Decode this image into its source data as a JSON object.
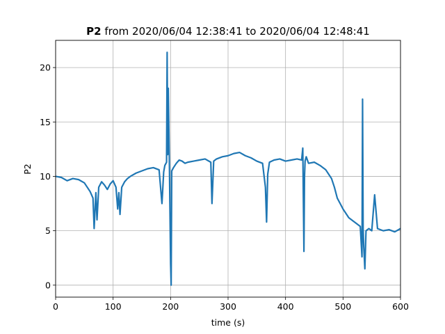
{
  "chart_data": {
    "type": "line",
    "title_bold": "P2",
    "title_rest": " from 2020/06/04 12:38:41 to 2020/06/04 12:48:41",
    "xlabel": "time (s)",
    "ylabel": "P2",
    "xlim": [
      0,
      600
    ],
    "ylim": [
      -1.1,
      22.5
    ],
    "xticks": [
      0,
      100,
      200,
      300,
      400,
      500,
      600
    ],
    "yticks": [
      0,
      5,
      10,
      15,
      20
    ],
    "grid": true,
    "series_color": "#1f77b4",
    "series": [
      {
        "x": [
          0,
          10,
          20,
          30,
          40,
          50,
          55,
          60,
          65,
          67,
          70,
          72,
          75,
          80,
          85,
          90,
          95,
          100,
          105,
          108,
          110,
          112,
          115,
          120,
          125,
          130,
          140,
          150,
          160,
          170,
          180,
          185,
          188,
          190,
          193,
          194,
          195,
          196,
          198,
          200,
          201,
          202,
          205,
          210,
          215,
          220,
          225,
          230,
          240,
          250,
          260,
          270,
          272,
          275,
          280,
          290,
          300,
          310,
          320,
          330,
          340,
          350,
          360,
          365,
          367,
          369,
          372,
          380,
          390,
          400,
          410,
          420,
          428,
          430,
          432,
          433,
          434,
          436,
          440,
          450,
          460,
          470,
          480,
          485,
          490,
          495,
          500,
          505,
          510,
          520,
          530,
          533,
          534,
          535,
          536,
          538,
          540,
          545,
          550,
          555,
          560,
          570,
          580,
          590,
          600
        ],
        "values": [
          10.0,
          9.9,
          9.6,
          9.8,
          9.7,
          9.4,
          9.0,
          8.6,
          8.0,
          5.2,
          8.5,
          6.0,
          9.0,
          9.5,
          9.2,
          8.8,
          9.3,
          9.6,
          9.0,
          7.0,
          8.5,
          6.5,
          9.0,
          9.5,
          9.8,
          10.0,
          10.3,
          10.5,
          10.7,
          10.8,
          10.6,
          7.5,
          10.4,
          11.0,
          11.3,
          21.4,
          12.0,
          18.1,
          10.9,
          2.0,
          0.0,
          10.5,
          10.8,
          11.2,
          11.5,
          11.4,
          11.2,
          11.3,
          11.4,
          11.5,
          11.6,
          11.3,
          7.5,
          11.4,
          11.6,
          11.8,
          11.9,
          12.1,
          12.2,
          11.9,
          11.7,
          11.4,
          11.2,
          9.0,
          5.8,
          10.2,
          11.3,
          11.5,
          11.6,
          11.4,
          11.5,
          11.6,
          11.5,
          12.6,
          3.1,
          10.0,
          11.4,
          11.8,
          11.2,
          11.3,
          11.0,
          10.6,
          9.8,
          9.0,
          8.0,
          7.5,
          7.0,
          6.6,
          6.2,
          5.8,
          5.4,
          2.6,
          17.1,
          5.2,
          3.6,
          1.5,
          5.0,
          5.2,
          5.0,
          8.3,
          5.2,
          5.0,
          5.1,
          4.9,
          5.2
        ]
      }
    ]
  }
}
